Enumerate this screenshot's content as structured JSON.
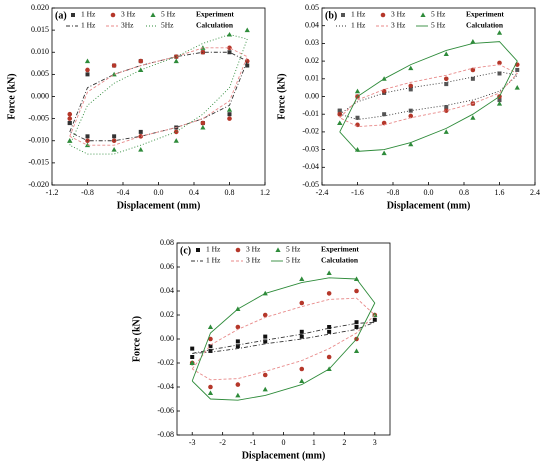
{
  "chart_data": [
    {
      "type": "scatter",
      "label": "(a)",
      "xlabel": "Displacement (mm)",
      "ylabel": "Force (kN)",
      "legend_groups": [
        "Experiment",
        "Calculation"
      ],
      "xlim": [
        -1.2,
        1.2
      ],
      "xticks": [
        -1.2,
        -0.8,
        -0.4,
        {
          "value": 0,
          "label": "0.0"
        },
        0.4,
        0.8,
        1.2
      ],
      "ylim": [
        -0.02,
        0.02
      ],
      "yticks": [
        {
          "value": -0.02,
          "label": "-0.020"
        },
        -0.015,
        {
          "value": -0.01,
          "label": "-0.010"
        },
        -0.005,
        {
          "value": 0,
          "label": "0.000"
        },
        0.005,
        {
          "value": 0.01,
          "label": "0.010"
        },
        0.015,
        {
          "value": 0.02,
          "label": "0.020"
        }
      ],
      "x": [
        -1,
        -0.8,
        -0.5,
        -0.2,
        0.2,
        0.5,
        0.8,
        1,
        0.8,
        0.5,
        0.2,
        -0.2,
        -0.5,
        -0.8,
        -1
      ],
      "series": [
        {
          "name": "1 Hz",
          "color": "#333333",
          "marker": "square",
          "values": [
            -0.006,
            0.005,
            0.007,
            0.008,
            0.009,
            0.01,
            0.01,
            0.007,
            -0.004,
            -0.006,
            -0.007,
            -0.008,
            -0.009,
            -0.009,
            -0.006
          ]
        },
        {
          "name": "3 Hz",
          "color": "#b5372a",
          "marker": "circle",
          "values": [
            -0.005,
            0.006,
            0.007,
            0.008,
            0.009,
            0.01,
            0.011,
            0.008,
            -0.005,
            -0.006,
            -0.008,
            -0.009,
            -0.01,
            -0.01,
            -0.004
          ]
        },
        {
          "name": "5 Hz",
          "color": "#2e8b3a",
          "marker": "triangle",
          "values": [
            -0.01,
            0.008,
            0.005,
            0.006,
            0.008,
            0.011,
            0.014,
            0.015,
            -0.003,
            -0.007,
            -0.01,
            -0.012,
            -0.012,
            -0.011,
            -0.01
          ]
        },
        {
          "name": "1 Hz",
          "color": "#333333",
          "marker": "line",
          "dash": "4 2 1 2",
          "values": [
            -0.008,
            0.002,
            0.005,
            0.007,
            0.009,
            0.01,
            0.01,
            0.008,
            -0.002,
            -0.005,
            -0.007,
            -0.009,
            -0.01,
            -0.01,
            -0.008
          ]
        },
        {
          "name": "3Hz",
          "color": "#e88a8a",
          "marker": "line",
          "dash": "3 2",
          "values": [
            -0.009,
            0.001,
            0.005,
            0.007,
            0.009,
            0.011,
            0.011,
            0.009,
            -0.001,
            -0.005,
            -0.007,
            -0.009,
            -0.011,
            -0.011,
            -0.009
          ]
        },
        {
          "name": "5Hz",
          "color": "#2e8b3a",
          "marker": "line",
          "dash": "1 2",
          "values": [
            -0.011,
            -0.002,
            0.003,
            0.006,
            0.009,
            0.012,
            0.014,
            0.013,
            0.002,
            -0.004,
            -0.008,
            -0.011,
            -0.013,
            -0.013,
            -0.011
          ]
        }
      ]
    },
    {
      "type": "scatter",
      "label": "(b)",
      "xlabel": "Displacement (mm)",
      "ylabel": "Force (kN)",
      "legend_groups": [
        "Experiment",
        "Calculation"
      ],
      "xlim": [
        -2.4,
        2.4
      ],
      "xticks": [
        -2.4,
        -1.6,
        -0.8,
        {
          "value": 0,
          "label": "0.0"
        },
        0.8,
        1.6,
        2.4
      ],
      "ylim": [
        -0.05,
        0.05
      ],
      "yticks": [
        -0.05,
        -0.04,
        -0.03,
        -0.02,
        -0.01,
        {
          "value": 0,
          "label": "0.00"
        },
        0.01,
        0.02,
        0.03,
        0.04,
        0.05
      ],
      "x": [
        -2,
        -1.6,
        -1,
        -0.4,
        0.4,
        1,
        1.6,
        2,
        1.6,
        1,
        0.4,
        -0.4,
        -1,
        -1.6,
        -2
      ],
      "series": [
        {
          "name": "1 Hz",
          "color": "#555555",
          "marker": "square",
          "values": [
            -0.008,
            0.0,
            0.002,
            0.004,
            0.007,
            0.01,
            0.013,
            0.015,
            -0.002,
            -0.004,
            -0.006,
            -0.008,
            -0.01,
            -0.012,
            -0.008
          ]
        },
        {
          "name": "3 Hz",
          "color": "#b5372a",
          "marker": "circle",
          "values": [
            -0.01,
            0.0,
            0.003,
            0.006,
            0.01,
            0.015,
            0.019,
            0.018,
            0.0,
            -0.004,
            -0.008,
            -0.011,
            -0.015,
            -0.016,
            -0.01
          ]
        },
        {
          "name": "5 Hz",
          "color": "#2e8b3a",
          "marker": "triangle",
          "values": [
            -0.015,
            0.003,
            0.01,
            0.016,
            0.024,
            0.031,
            0.036,
            0.005,
            -0.004,
            -0.012,
            -0.02,
            -0.027,
            -0.032,
            -0.03,
            -0.015
          ]
        },
        {
          "name": "1 Hz",
          "color": "#333333",
          "marker": "line",
          "dash": "1 2",
          "values": [
            -0.01,
            -0.003,
            0.002,
            0.005,
            0.008,
            0.011,
            0.014,
            0.012,
            0.003,
            -0.002,
            -0.005,
            -0.008,
            -0.011,
            -0.013,
            -0.01
          ]
        },
        {
          "name": "3 Hz",
          "color": "#e88a8a",
          "marker": "line",
          "dash": "3 2",
          "values": [
            -0.012,
            -0.002,
            0.004,
            0.008,
            0.012,
            0.016,
            0.018,
            0.013,
            0.002,
            -0.004,
            -0.008,
            -0.012,
            -0.016,
            -0.017,
            -0.012
          ]
        },
        {
          "name": "5 Hz",
          "color": "#2e8b3a",
          "marker": "line",
          "dash": "none",
          "values": [
            -0.02,
            0.0,
            0.01,
            0.018,
            0.026,
            0.03,
            0.031,
            0.02,
            0.0,
            -0.01,
            -0.018,
            -0.026,
            -0.03,
            -0.031,
            -0.02
          ]
        }
      ]
    },
    {
      "type": "scatter",
      "label": "(c)",
      "xlabel": "Displacement (mm)",
      "ylabel": "Force (kN)",
      "legend_groups": [
        "Experiment",
        "Calculation"
      ],
      "xlim": [
        -3.5,
        3.5
      ],
      "xticks": [
        -3,
        -2,
        -1,
        0,
        1,
        2,
        3
      ],
      "ylim": [
        -0.08,
        0.08
      ],
      "yticks": [
        -0.08,
        -0.06,
        -0.04,
        -0.02,
        {
          "value": 0,
          "label": "0.00"
        },
        0.02,
        0.04,
        0.06,
        0.08
      ],
      "x": [
        -3,
        -2.4,
        -1.5,
        -0.6,
        0.6,
        1.5,
        2.4,
        3,
        2.4,
        1.5,
        0.6,
        -0.6,
        -1.5,
        -2.4,
        -3
      ],
      "series": [
        {
          "name": "1 Hz",
          "color": "#111111",
          "marker": "square",
          "values": [
            -0.008,
            -0.006,
            -0.002,
            0.002,
            0.006,
            0.01,
            0.014,
            0.016,
            0.01,
            0.006,
            0.002,
            -0.002,
            -0.006,
            -0.01,
            -0.015
          ]
        },
        {
          "name": "3 Hz",
          "color": "#b5372a",
          "marker": "circle",
          "values": [
            -0.02,
            0.0,
            0.01,
            0.02,
            0.03,
            0.038,
            0.04,
            0.02,
            0.0,
            -0.015,
            -0.025,
            -0.03,
            -0.038,
            -0.04,
            -0.02
          ]
        },
        {
          "name": "5 Hz",
          "color": "#2e8b3a",
          "marker": "triangle",
          "values": [
            -0.02,
            0.01,
            0.025,
            0.038,
            0.05,
            0.055,
            0.05,
            0.02,
            -0.01,
            -0.025,
            -0.035,
            -0.042,
            -0.047,
            -0.045,
            -0.02
          ]
        },
        {
          "name": "1 Hz",
          "color": "#333333",
          "marker": "line",
          "dash": "4 2 1 2",
          "values": [
            -0.012,
            -0.009,
            -0.005,
            -0.001,
            0.004,
            0.009,
            0.013,
            0.014,
            0.008,
            0.004,
            0.0,
            -0.004,
            -0.008,
            -0.011,
            -0.012
          ]
        },
        {
          "name": "3 Hz",
          "color": "#e88a8a",
          "marker": "line",
          "dash": "3 2",
          "values": [
            -0.025,
            -0.005,
            0.008,
            0.018,
            0.027,
            0.033,
            0.034,
            0.02,
            0.005,
            -0.008,
            -0.018,
            -0.027,
            -0.033,
            -0.034,
            -0.025
          ]
        },
        {
          "name": "5 Hz",
          "color": "#2e8b3a",
          "marker": "line",
          "dash": "none",
          "values": [
            -0.035,
            0.005,
            0.025,
            0.038,
            0.047,
            0.051,
            0.05,
            0.03,
            0.0,
            -0.025,
            -0.038,
            -0.047,
            -0.051,
            -0.05,
            -0.035
          ]
        }
      ]
    }
  ]
}
